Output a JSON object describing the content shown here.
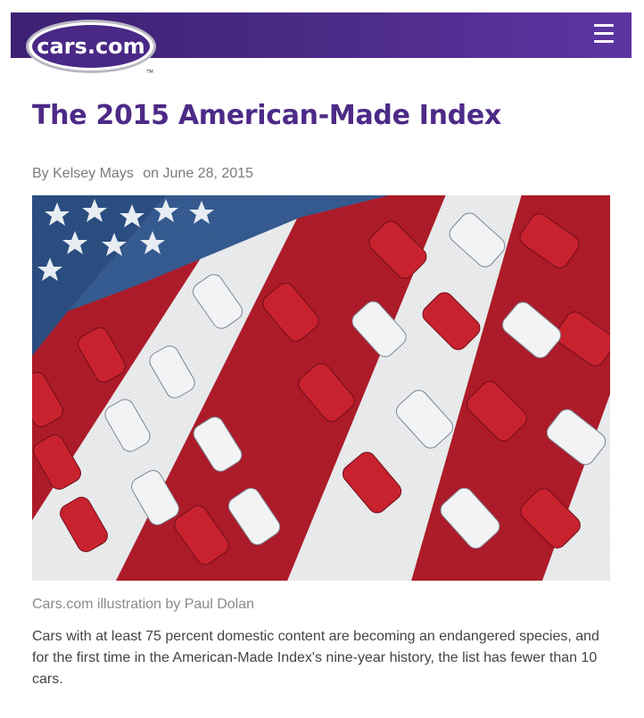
{
  "header": {
    "logo_text": "cars.com",
    "logo_tm": "TM",
    "menu_icon": "hamburger-menu-icon",
    "colors": {
      "brand_purple": "#4b2a86",
      "title_purple": "#4d2a87"
    }
  },
  "article": {
    "title": "The 2015 American-Made Index",
    "byline_prefix": "By",
    "author": "Kelsey Mays",
    "date_prefix": "on",
    "date": "June 28, 2015",
    "image_caption": "Cars.com illustration by Paul Dolan",
    "lede": "Cars with at least 75 percent domestic content are becoming an endangered species, and for the first time in the American-Made Index's nine-year history, the list has fewer than 10 cars."
  }
}
